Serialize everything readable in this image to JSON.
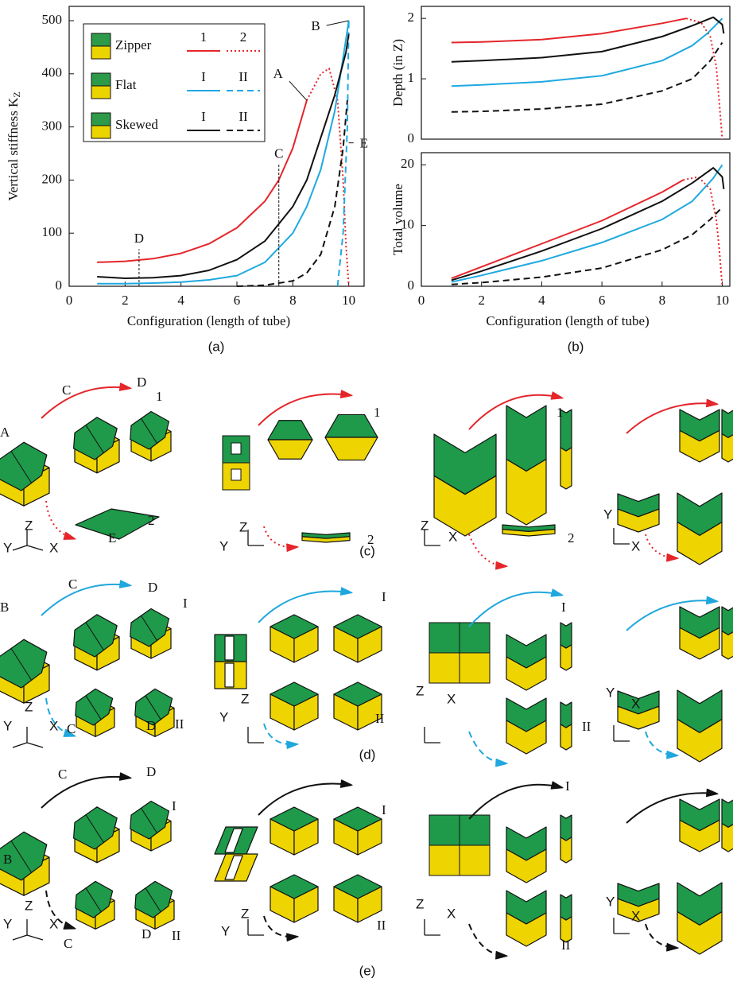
{
  "chart_data": [
    {
      "type": "line",
      "panel_label": "(a)",
      "x_label": "Configuration (length of tube)",
      "y_label": "Vertical stiffness K",
      "y_label_sub": "Z",
      "xlim": [
        0,
        10.55
      ],
      "ylim": [
        0,
        527
      ],
      "xticks": [
        0,
        2,
        4,
        6,
        8,
        10
      ],
      "yticks": [
        0,
        100,
        200,
        300,
        400,
        500
      ],
      "legend": "upper-left",
      "series": [
        {
          "group": "Zipper",
          "name": "1",
          "color": "#e4262b",
          "dash": "solid",
          "x": [
            1,
            2,
            3,
            4,
            5,
            6,
            7,
            7.5,
            8,
            8.5
          ],
          "values": [
            45,
            47,
            52,
            62,
            80,
            110,
            160,
            200,
            260,
            350
          ]
        },
        {
          "group": "Zipper",
          "name": "2",
          "color": "#e4262b",
          "dash": "dotted",
          "x": [
            8.5,
            9,
            9.3,
            9.6,
            9.8,
            9.9,
            10
          ],
          "values": [
            350,
            400,
            410,
            350,
            200,
            80,
            0
          ]
        },
        {
          "group": "Flat",
          "name": "I",
          "color": "#1fa9e1",
          "dash": "solid",
          "x": [
            1,
            2,
            3,
            4,
            5,
            6,
            7,
            8,
            8.5,
            9,
            9.5,
            9.8,
            10
          ],
          "values": [
            5,
            5,
            6,
            8,
            12,
            20,
            45,
            100,
            150,
            220,
            330,
            430,
            500
          ]
        },
        {
          "group": "Flat",
          "name": "II",
          "color": "#1fa9e1",
          "dash": "dashed",
          "x": [
            9.6,
            9.8,
            9.95,
            10
          ],
          "values": [
            0,
            100,
            300,
            500
          ]
        },
        {
          "group": "Skewed",
          "name": "I",
          "color": "#111111",
          "dash": "solid",
          "x": [
            1,
            2,
            3,
            4,
            5,
            6,
            7,
            8,
            8.5,
            9,
            9.5,
            9.9,
            10
          ],
          "values": [
            18,
            15,
            16,
            20,
            30,
            50,
            85,
            150,
            200,
            280,
            360,
            440,
            475
          ]
        },
        {
          "group": "Skewed",
          "name": "II",
          "color": "#111111",
          "dash": "dashed",
          "x": [
            6,
            7,
            8,
            8.5,
            9,
            9.5,
            9.8,
            9.95
          ],
          "values": [
            0,
            2,
            10,
            25,
            60,
            150,
            260,
            350
          ]
        }
      ],
      "annotations": [
        {
          "text": "A",
          "x": 8.5,
          "y": 350,
          "kind": "arrow"
        },
        {
          "text": "B",
          "x": 10,
          "y": 500,
          "kind": "arrow-left"
        },
        {
          "text": "C",
          "x": 7.5,
          "y": 230,
          "kind": "vline"
        },
        {
          "text": "D",
          "x": 2.5,
          "y": 70,
          "kind": "vline"
        },
        {
          "text": "E",
          "x": 10,
          "y": 270,
          "kind": "arrow-right"
        }
      ]
    },
    {
      "type": "line",
      "y_label": "Depth (in Z)",
      "xlim": [
        0,
        10.25
      ],
      "ylim": [
        0,
        2.2
      ],
      "yticks": [
        0,
        1,
        2
      ],
      "series": [
        {
          "color": "#e4262b",
          "dash": "solid",
          "x": [
            1,
            2,
            4,
            6,
            8,
            8.8
          ],
          "values": [
            1.6,
            1.61,
            1.65,
            1.75,
            1.92,
            2.0
          ]
        },
        {
          "color": "#e4262b",
          "dash": "dotted",
          "x": [
            8.8,
            9.3,
            9.6,
            9.8,
            9.9,
            10
          ],
          "values": [
            2.0,
            1.93,
            1.7,
            1.2,
            0.6,
            0
          ]
        },
        {
          "color": "#1fa9e1",
          "dash": "solid",
          "x": [
            1,
            2,
            4,
            6,
            8,
            9,
            9.5,
            10
          ],
          "values": [
            0.88,
            0.9,
            0.95,
            1.05,
            1.3,
            1.55,
            1.75,
            2.0
          ]
        },
        {
          "color": "#111111",
          "dash": "solid",
          "x": [
            1,
            2,
            4,
            6,
            8,
            9,
            9.7,
            10,
            10.05
          ],
          "values": [
            1.28,
            1.3,
            1.35,
            1.45,
            1.7,
            1.88,
            2.02,
            1.9,
            1.75
          ]
        },
        {
          "color": "#111111",
          "dash": "dashed",
          "x": [
            1,
            2,
            4,
            6,
            8,
            9,
            9.6,
            10
          ],
          "values": [
            0.45,
            0.46,
            0.5,
            0.58,
            0.8,
            1.0,
            1.3,
            1.6
          ]
        }
      ]
    },
    {
      "type": "line",
      "panel_label": "(b)",
      "x_label": "Configuration (length of tube)",
      "y_label": "Total volume",
      "xlim": [
        0,
        10.25
      ],
      "ylim": [
        0,
        22
      ],
      "xticks": [
        0,
        2,
        4,
        6,
        8,
        10
      ],
      "yticks": [
        0,
        10,
        20
      ],
      "series": [
        {
          "color": "#e4262b",
          "dash": "solid",
          "x": [
            1,
            2,
            4,
            6,
            8,
            8.7
          ],
          "values": [
            1.3,
            3.2,
            7,
            10.8,
            15.5,
            17.5
          ]
        },
        {
          "color": "#e4262b",
          "dash": "dotted",
          "x": [
            8.7,
            9.2,
            9.6,
            9.8,
            9.9,
            10
          ],
          "values": [
            17.5,
            18,
            16,
            11,
            6,
            0
          ]
        },
        {
          "color": "#1fa9e1",
          "dash": "solid",
          "x": [
            1,
            2,
            4,
            6,
            8,
            9,
            9.7,
            10
          ],
          "values": [
            0.7,
            1.8,
            4.2,
            7.2,
            11,
            14,
            17.8,
            20
          ]
        },
        {
          "color": "#111111",
          "dash": "solid",
          "x": [
            1,
            2,
            4,
            6,
            8,
            9,
            9.7,
            10,
            10.05
          ],
          "values": [
            1,
            2.5,
            5.8,
            9.5,
            14,
            17,
            19.5,
            18,
            16
          ]
        },
        {
          "color": "#111111",
          "dash": "dashed",
          "x": [
            1,
            2,
            4,
            6,
            8,
            9,
            9.6,
            10
          ],
          "values": [
            0.3,
            0.6,
            1.5,
            3,
            6,
            8.5,
            11,
            13
          ]
        }
      ]
    }
  ],
  "illustrations": [
    {
      "label": "(c)",
      "texts": [
        "C",
        "D",
        "1",
        "A",
        "2",
        "E",
        "Z",
        "Y",
        "X",
        "1",
        "Z",
        "Y",
        "2",
        "1",
        "Z",
        "X",
        "2",
        "Y",
        "X"
      ]
    },
    {
      "label": "(d)",
      "texts": [
        "C",
        "D",
        "I",
        "B",
        "C",
        "D",
        "II",
        "Z",
        "Y",
        "X",
        "I",
        "Z",
        "Y",
        "II",
        "I",
        "Z",
        "X",
        "II",
        "Y",
        "X"
      ]
    },
    {
      "label": "(e)",
      "texts": [
        "C",
        "D",
        "I",
        "B",
        "Z",
        "Y",
        "X",
        "C",
        "D",
        "II",
        "I",
        "Z",
        "Y",
        "II",
        "I",
        "Z",
        "X",
        "II",
        "Y",
        "X"
      ]
    }
  ]
}
